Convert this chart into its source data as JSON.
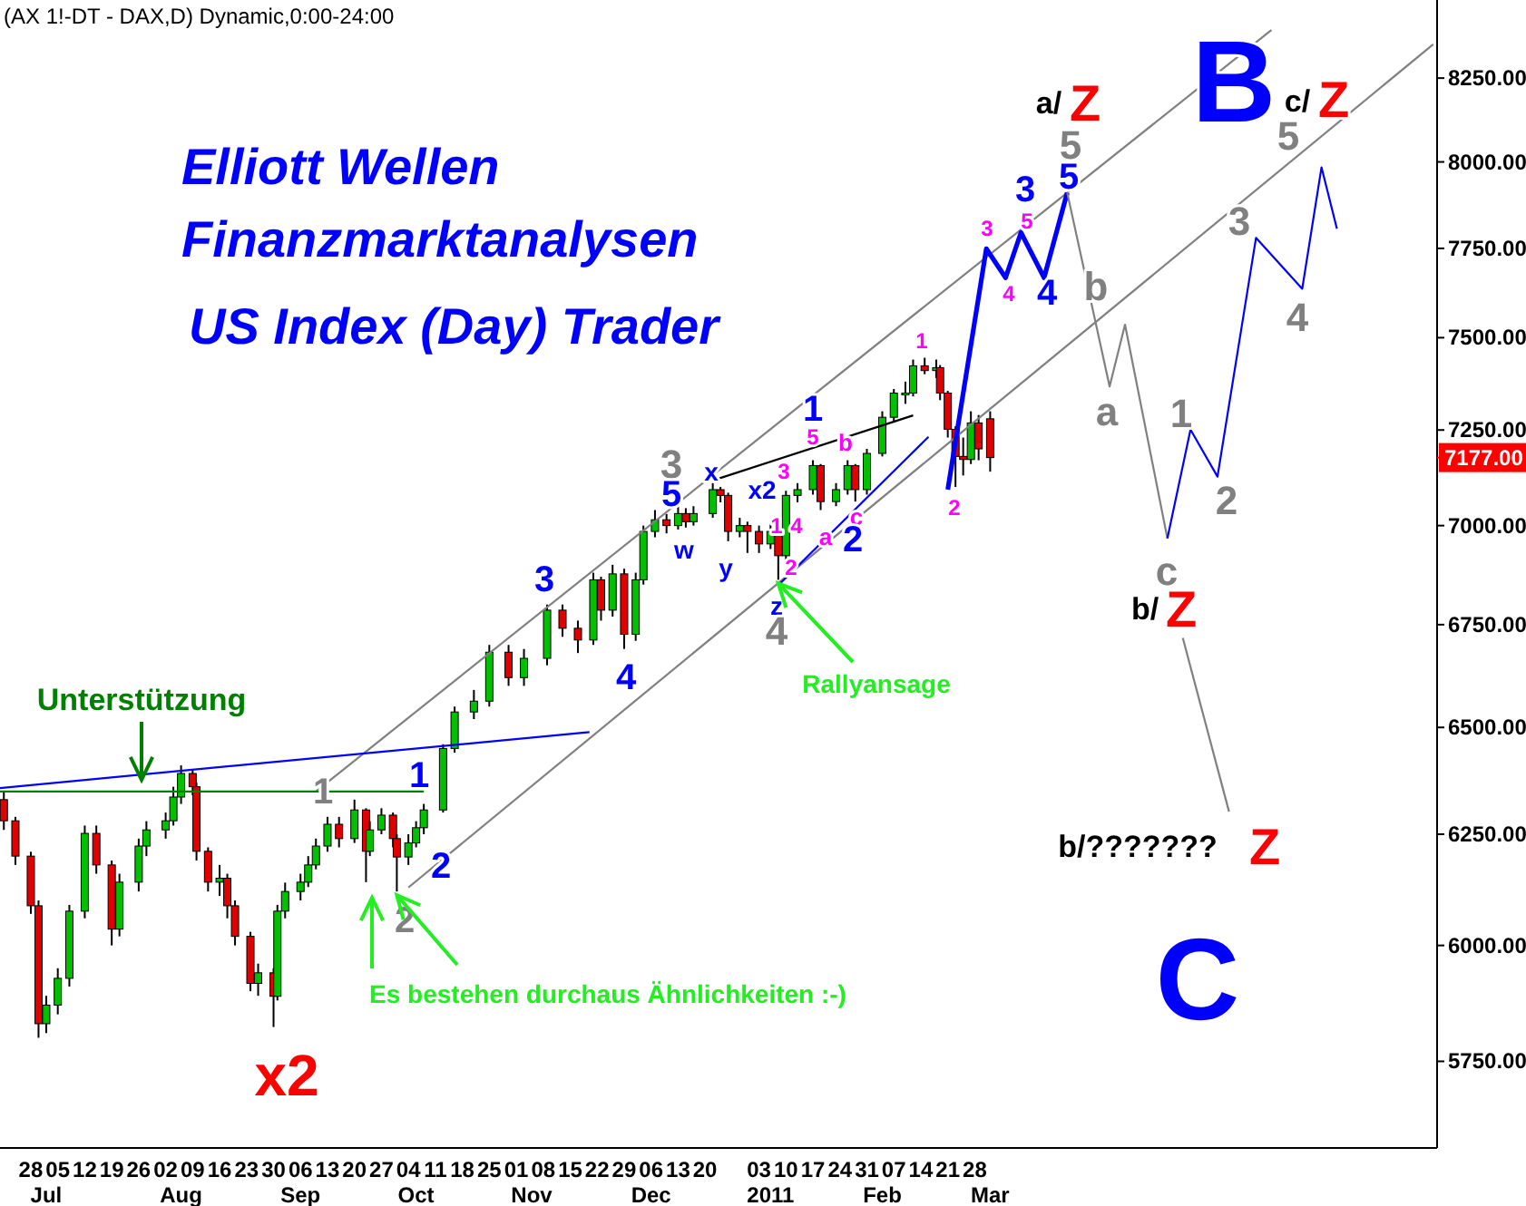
{
  "chart_data": {
    "type": "candlestick",
    "title": "(AX 1!-DT - DAX,D) Dynamic,0:00-24:00",
    "log": true,
    "xlim": [
      "2010-06-20",
      "2011-06-28"
    ],
    "ylim": [
      5570,
      8490
    ],
    "xticks": [
      {
        "value": "2010-06-28",
        "label": "28"
      },
      {
        "value": "2010-07-05",
        "label": "05"
      },
      {
        "value": "2010-07-12",
        "label": "12"
      },
      {
        "value": "2010-07-19",
        "label": "19"
      },
      {
        "value": "2010-07-26",
        "label": "26"
      },
      {
        "value": "2010-08-02",
        "label": "02"
      },
      {
        "value": "2010-08-09",
        "label": "09"
      },
      {
        "value": "2010-08-16",
        "label": "16"
      },
      {
        "value": "2010-08-23",
        "label": "23"
      },
      {
        "value": "2010-08-30",
        "label": "30"
      },
      {
        "value": "2010-09-06",
        "label": "06"
      },
      {
        "value": "2010-09-13",
        "label": "13"
      },
      {
        "value": "2010-09-20",
        "label": "20"
      },
      {
        "value": "2010-09-27",
        "label": "27"
      },
      {
        "value": "2010-10-04",
        "label": "04"
      },
      {
        "value": "2010-10-11",
        "label": "11"
      },
      {
        "value": "2010-10-18",
        "label": "18"
      },
      {
        "value": "2010-10-25",
        "label": "25"
      },
      {
        "value": "2010-11-01",
        "label": "01"
      },
      {
        "value": "2010-11-08",
        "label": "08"
      },
      {
        "value": "2010-11-15",
        "label": "15"
      },
      {
        "value": "2010-11-22",
        "label": "22"
      },
      {
        "value": "2010-11-29",
        "label": "29"
      },
      {
        "value": "2010-12-06",
        "label": "06"
      },
      {
        "value": "2010-12-13",
        "label": "13"
      },
      {
        "value": "2010-12-20",
        "label": "20"
      },
      {
        "value": "2011-01-03",
        "label": "03"
      },
      {
        "value": "2011-01-10",
        "label": "10"
      },
      {
        "value": "2011-01-17",
        "label": "17"
      },
      {
        "value": "2011-01-24",
        "label": "24"
      },
      {
        "value": "2011-01-31",
        "label": "31"
      },
      {
        "value": "2011-02-07",
        "label": "07"
      },
      {
        "value": "2011-02-14",
        "label": "14"
      },
      {
        "value": "2011-02-21",
        "label": "21"
      },
      {
        "value": "2011-02-28",
        "label": "28"
      }
    ],
    "x2lim": [
      "2010-06-20",
      "2011-06-28"
    ],
    "x2ticks": [
      {
        "value": "2010-07-02",
        "label": "Jul"
      },
      {
        "value": "2010-08-06",
        "label": "Aug"
      },
      {
        "value": "2010-09-06",
        "label": "Sep"
      },
      {
        "value": "2010-10-06",
        "label": "Oct"
      },
      {
        "value": "2010-11-05",
        "label": "Nov"
      },
      {
        "value": "2010-12-06",
        "label": "Dec"
      },
      {
        "value": "2011-01-06",
        "label": "2011"
      },
      {
        "value": "2011-02-04",
        "label": "Feb"
      },
      {
        "value": "2011-03-04",
        "label": "Mar"
      }
    ],
    "yticks": [
      {
        "value": 5750,
        "label": "5750.00"
      },
      {
        "value": 6000,
        "label": "6000.00"
      },
      {
        "value": 6250,
        "label": "6250.00"
      },
      {
        "value": 6500,
        "label": "6500.00"
      },
      {
        "value": 6750,
        "label": "6750.00"
      },
      {
        "value": 7000,
        "label": "7000.00"
      },
      {
        "value": 7250,
        "label": "7250.00"
      },
      {
        "value": 7500,
        "label": "7500.00"
      },
      {
        "value": 7750,
        "label": "7750.00"
      },
      {
        "value": 8000,
        "label": "8000.00"
      },
      {
        "value": 8250,
        "label": "8250.00"
      }
    ],
    "ref_lines": [
      {
        "axis": "y",
        "value": 7177,
        "label": "7177.00",
        "color": "#ff0000"
      }
    ],
    "series": [
      {
        "x": [
          "2010-06-21",
          "2010-06-24",
          "2010-06-28",
          "2010-06-30",
          "2010-07-02",
          "2010-07-05",
          "2010-07-08",
          "2010-07-12",
          "2010-07-15",
          "2010-07-19",
          "2010-07-21",
          "2010-07-26",
          "2010-07-28",
          "2010-08-02",
          "2010-08-04",
          "2010-08-06",
          "2010-08-09",
          "2010-08-10",
          "2010-08-13",
          "2010-08-16",
          "2010-08-18",
          "2010-08-20",
          "2010-08-24",
          "2010-08-26",
          "2010-08-30",
          "2010-08-31",
          "2010-09-02",
          "2010-09-06",
          "2010-09-08",
          "2010-09-10",
          "2010-09-13",
          "2010-09-16",
          "2010-09-20",
          "2010-09-23",
          "2010-09-24",
          "2010-09-27",
          "2010-09-30",
          "2010-10-01",
          "2010-10-04",
          "2010-10-06",
          "2010-10-08",
          "2010-10-13",
          "2010-10-16",
          "2010-10-21",
          "2010-10-25",
          "2010-10-30",
          "2010-11-03",
          "2010-11-09",
          "2010-11-13",
          "2010-11-17",
          "2010-11-21",
          "2010-11-23",
          "2010-11-26",
          "2010-11-29",
          "2010-12-02",
          "2010-12-04",
          "2010-12-07",
          "2010-12-10",
          "2010-12-13",
          "2010-12-15",
          "2010-12-17",
          "2010-12-22",
          "2010-12-24",
          "2010-12-26",
          "2010-12-29",
          "2010-12-31",
          "2011-01-03",
          "2011-01-06",
          "2011-01-08",
          "2011-01-10",
          "2011-01-13",
          "2011-01-17",
          "2011-01-19",
          "2011-01-23",
          "2011-01-26",
          "2011-01-28",
          "2011-01-31",
          "2011-02-04",
          "2011-02-07",
          "2011-02-10",
          "2011-02-12",
          "2011-02-15",
          "2011-02-18",
          "2011-02-19",
          "2011-02-21",
          "2011-02-23",
          "2011-02-25",
          "2011-02-27",
          "2011-03-01",
          "2011-03-04"
        ],
        "ohlc": [
          [
            6330,
            6350,
            6260,
            6281
          ],
          [
            6281,
            6290,
            6180,
            6200
          ],
          [
            6200,
            6210,
            6070,
            6088
          ],
          [
            6088,
            6100,
            5800,
            5830
          ],
          [
            5830,
            5890,
            5810,
            5870
          ],
          [
            5870,
            5950,
            5850,
            5928
          ],
          [
            5928,
            6090,
            5910,
            6076
          ],
          [
            6076,
            6270,
            6060,
            6252
          ],
          [
            6252,
            6270,
            6160,
            6180
          ],
          [
            6180,
            6190,
            6000,
            6036
          ],
          [
            6036,
            6160,
            6020,
            6141
          ],
          [
            6141,
            6240,
            6120,
            6223
          ],
          [
            6223,
            6280,
            6200,
            6260
          ],
          [
            6260,
            6300,
            6240,
            6281
          ],
          [
            6281,
            6360,
            6270,
            6336
          ],
          [
            6336,
            6410,
            6320,
            6391
          ],
          [
            6391,
            6400,
            6340,
            6360
          ],
          [
            6360,
            6370,
            6190,
            6211
          ],
          [
            6211,
            6220,
            6120,
            6141
          ],
          [
            6141,
            6180,
            6110,
            6150
          ],
          [
            6150,
            6160,
            6060,
            6088
          ],
          [
            6088,
            6100,
            6000,
            6020
          ],
          [
            6020,
            6030,
            5900,
            5917
          ],
          [
            5917,
            5960,
            5890,
            5940
          ],
          [
            5940,
            5950,
            5823,
            5889
          ],
          [
            5889,
            6090,
            5880,
            6076
          ],
          [
            6076,
            6140,
            6060,
            6120
          ],
          [
            6120,
            6160,
            6100,
            6141
          ],
          [
            6141,
            6200,
            6130,
            6180
          ],
          [
            6180,
            6240,
            6170,
            6223
          ],
          [
            6223,
            6290,
            6210,
            6273
          ],
          [
            6273,
            6290,
            6220,
            6240
          ],
          [
            6240,
            6330,
            6230,
            6306
          ],
          [
            6306,
            6310,
            6141,
            6211
          ],
          [
            6211,
            6280,
            6200,
            6260
          ],
          [
            6260,
            6310,
            6250,
            6294
          ],
          [
            6294,
            6300,
            6220,
            6240
          ],
          [
            6240,
            6250,
            6120,
            6198
          ],
          [
            6198,
            6250,
            6180,
            6230
          ],
          [
            6230,
            6280,
            6220,
            6265
          ],
          [
            6265,
            6320,
            6250,
            6306
          ],
          [
            6306,
            6460,
            6300,
            6450
          ],
          [
            6450,
            6550,
            6440,
            6537
          ],
          [
            6537,
            6590,
            6520,
            6563
          ],
          [
            6563,
            6700,
            6550,
            6682
          ],
          [
            6682,
            6700,
            6600,
            6620
          ],
          [
            6620,
            6690,
            6600,
            6667
          ],
          [
            6667,
            6800,
            6650,
            6786
          ],
          [
            6786,
            6800,
            6720,
            6741
          ],
          [
            6741,
            6760,
            6680,
            6712
          ],
          [
            6712,
            6880,
            6700,
            6862
          ],
          [
            6862,
            6870,
            6760,
            6786
          ],
          [
            6786,
            6900,
            6770,
            6877
          ],
          [
            6877,
            6890,
            6690,
            6726
          ],
          [
            6726,
            6880,
            6710,
            6862
          ],
          [
            6862,
            7000,
            6850,
            6985
          ],
          [
            6985,
            7040,
            6970,
            7015
          ],
          [
            7015,
            7030,
            6980,
            7000
          ],
          [
            7000,
            7050,
            6990,
            7031
          ],
          [
            7031,
            7045,
            6995,
            7010
          ],
          [
            7010,
            7050,
            7000,
            7031
          ],
          [
            7031,
            7110,
            7020,
            7093
          ],
          [
            7093,
            7100,
            7060,
            7078
          ],
          [
            7078,
            7085,
            6960,
            6985
          ],
          [
            6985,
            7020,
            6970,
            7000
          ],
          [
            7000,
            7010,
            6930,
            6985
          ],
          [
            6985,
            7000,
            6930,
            6953
          ],
          [
            6953,
            7010,
            6940,
            6985
          ],
          [
            6985,
            6990,
            6862,
            6923
          ],
          [
            6923,
            7090,
            6910,
            7078
          ],
          [
            7078,
            7110,
            7060,
            7093
          ],
          [
            7093,
            7170,
            7080,
            7156
          ],
          [
            7156,
            7160,
            7040,
            7062
          ],
          [
            7062,
            7110,
            7050,
            7093
          ],
          [
            7093,
            7170,
            7080,
            7156
          ],
          [
            7156,
            7160,
            7062,
            7093
          ],
          [
            7093,
            7200,
            7080,
            7188
          ],
          [
            7188,
            7300,
            7180,
            7284
          ],
          [
            7284,
            7360,
            7270,
            7349
          ],
          [
            7349,
            7380,
            7320,
            7349
          ],
          [
            7349,
            7440,
            7340,
            7423
          ],
          [
            7423,
            7445,
            7400,
            7410
          ],
          [
            7410,
            7440,
            7390,
            7418
          ],
          [
            7418,
            7425,
            7330,
            7349
          ],
          [
            7349,
            7355,
            7230,
            7252
          ],
          [
            7252,
            7260,
            7100,
            7180
          ],
          [
            7180,
            7230,
            7130,
            7172
          ],
          [
            7172,
            7300,
            7160,
            7269
          ],
          [
            7269,
            7290,
            7170,
            7200
          ],
          [
            7280,
            7300,
            7140,
            7177
          ]
        ]
      },
      {
        "type": "line",
        "color": "#808080",
        "x": [
          "2010-09-10",
          "2011-05-16"
        ],
        "values": [
          6349,
          8397
        ]
      },
      {
        "type": "line",
        "color": "#808080",
        "x": [
          "2010-10-04",
          "2011-06-27"
        ],
        "values": [
          6129,
          8353
        ]
      },
      {
        "type": "line",
        "color": "#0000ff",
        "x": [
          "2010-06-20",
          "2010-11-20"
        ],
        "values": [
          6357,
          6489
        ]
      },
      {
        "type": "line",
        "color": "#008000",
        "x": [
          "2010-06-20",
          "2010-10-08"
        ],
        "values": [
          6349,
          6349
        ]
      },
      {
        "type": "line",
        "color": "#000000",
        "x": [
          "2010-12-22",
          "2011-02-12"
        ],
        "values": [
          7117,
          7289
        ]
      },
      {
        "type": "line",
        "color": "#0000ff",
        "x": [
          "2011-01-08",
          "2011-02-16"
        ],
        "values": [
          6848,
          7232
        ]
      },
      {
        "type": "line",
        "color": "#0000ff",
        "x": [
          "2011-02-21",
          "2011-03-03",
          "2011-03-08",
          "2011-03-12",
          "2011-03-18",
          "2011-03-24"
        ],
        "values": [
          7093,
          7749,
          7667,
          7795,
          7667,
          7910
        ]
      },
      {
        "type": "line",
        "color": "#808080",
        "x": [
          "2011-03-24",
          "2011-04-04",
          "2011-04-08",
          "2011-04-19"
        ],
        "values": [
          7910,
          7367,
          7536,
          6967
        ]
      },
      {
        "type": "line",
        "color": "#0000ff",
        "x": [
          "2011-04-19",
          "2011-04-25",
          "2011-05-02",
          "2011-05-12",
          "2011-05-24",
          "2011-05-29",
          "2011-06-02"
        ],
        "values": [
          6967,
          7251,
          7127,
          7780,
          7636,
          7984,
          7806
        ]
      },
      {
        "type": "line",
        "color": "#808080",
        "x": [
          "2011-04-23",
          "2011-05-05"
        ],
        "values": [
          6717,
          6302
        ]
      }
    ],
    "annotations": [
      "Elliott Wellen",
      "Finanzmarktanalysen",
      "US Index (Day) Trader",
      "Unterstützung",
      {
        "text": "Rallyansage",
        "x": "2011-01-08",
        "y": 6862
      },
      {
        "text": "Es bestehen durchaus Ähnlichkeiten :-)",
        "x": "2010-10-01",
        "y": 6120
      },
      "x2",
      "1",
      "1",
      "2",
      "2",
      "3",
      "4",
      "3",
      "5",
      "w",
      "x",
      "y",
      "x2",
      "z",
      "4",
      "1",
      "5",
      "1",
      "2",
      "3",
      "4",
      "a",
      "b",
      "c",
      "2",
      "1",
      "2",
      "a/",
      "Z",
      "5",
      "3",
      "5",
      "3",
      "5",
      "4",
      "4",
      "B",
      "c/",
      "Z",
      "5",
      "3",
      "4",
      "b",
      "a",
      "1",
      "2",
      "c",
      "b/",
      "Z",
      "b/???????",
      "Z",
      "C"
    ]
  }
}
